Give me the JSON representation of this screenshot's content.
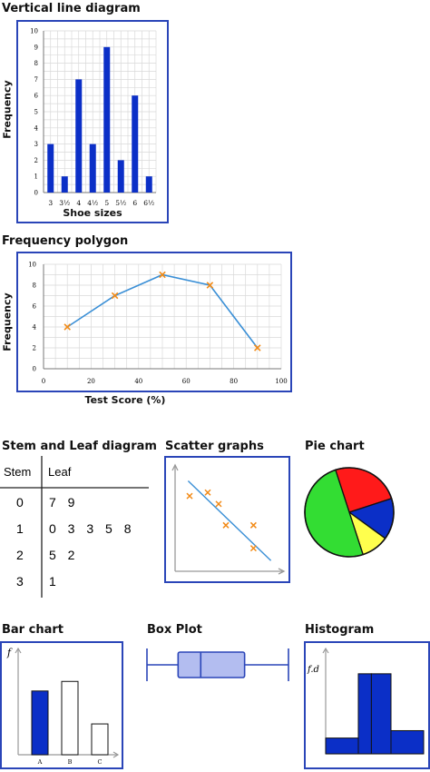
{
  "titles": {
    "vertical_line": "Vertical line diagram",
    "freq_polygon": "Frequency polygon",
    "stem_leaf": "Stem and Leaf diagram",
    "scatter": "Scatter graphs",
    "pie": "Pie chart",
    "bar": "Bar chart",
    "box_plot": "Box Plot",
    "histogram": "Histogram"
  },
  "colors": {
    "border": "#2a45b8",
    "bar": "#0b2fc7",
    "line": "#3a8fd6",
    "marker": "#f28a16",
    "grid": "#d9d9d9"
  },
  "chart_data": [
    {
      "type": "bar",
      "title": "Vertical line diagram",
      "categories": [
        "3",
        "3½",
        "4",
        "4½",
        "5",
        "5½",
        "6",
        "6½"
      ],
      "values": [
        3,
        1,
        7,
        3,
        9,
        2,
        6,
        1
      ],
      "xlabel": "Shoe sizes",
      "ylabel": "Frequency",
      "ylim": [
        0,
        10
      ],
      "yticks": [
        0,
        1,
        2,
        3,
        4,
        5,
        6,
        7,
        8,
        9,
        10
      ],
      "grid": true
    },
    {
      "type": "line",
      "title": "Frequency polygon",
      "x": [
        10,
        30,
        50,
        70,
        90
      ],
      "y": [
        4,
        7,
        9,
        8,
        2
      ],
      "xlabel": "Test Score (%)",
      "ylabel": "Frequency",
      "xlim": [
        0,
        100
      ],
      "ylim": [
        0,
        10
      ],
      "xticks": [
        0,
        20,
        40,
        60,
        80,
        100
      ],
      "yticks": [
        0,
        2,
        4,
        6,
        8,
        10
      ],
      "grid": true
    },
    {
      "type": "table",
      "title": "Stem and Leaf diagram",
      "headers": [
        "Stem",
        "Leaf"
      ],
      "rows": [
        {
          "stem": "0",
          "leaf": "7 9"
        },
        {
          "stem": "1",
          "leaf": "0 3 3 5 8"
        },
        {
          "stem": "2",
          "leaf": "5 2"
        },
        {
          "stem": "3",
          "leaf": "1"
        }
      ]
    },
    {
      "type": "scatter",
      "title": "Scatter graphs",
      "points": [
        [
          2,
          8.5
        ],
        [
          4.5,
          8.9
        ],
        [
          6,
          7.6
        ],
        [
          7,
          5.2
        ],
        [
          10.8,
          5.2
        ],
        [
          10.8,
          2.6
        ]
      ],
      "trend_line": [
        [
          1.8,
          10.2
        ],
        [
          13.2,
          1.2
        ]
      ],
      "xlim": [
        0,
        15
      ],
      "ylim": [
        0,
        12
      ]
    },
    {
      "type": "pie",
      "title": "Pie chart",
      "slices": [
        {
          "value": 25,
          "color": "#ff1a1a"
        },
        {
          "value": 15,
          "color": "#0b2fc7"
        },
        {
          "value": 10,
          "color": "#ffff4d"
        },
        {
          "value": 50,
          "color": "#33dd33"
        }
      ]
    },
    {
      "type": "bar",
      "title": "Bar chart",
      "categories": [
        "A",
        "B",
        "C"
      ],
      "values": [
        6,
        6.9,
        2.9
      ],
      "highlight": [
        true,
        false,
        false
      ],
      "ylabel": "f",
      "ylim": [
        0,
        10
      ]
    },
    {
      "type": "box",
      "title": "Box Plot",
      "min": 0,
      "q1": 22,
      "median": 38,
      "q3": 69,
      "max": 100
    },
    {
      "type": "bar",
      "title": "Histogram",
      "bins": [
        [
          0,
          1
        ],
        [
          1,
          1.4
        ],
        [
          1.4,
          2
        ],
        [
          2,
          3
        ]
      ],
      "values": [
        1.5,
        7.6,
        7.6,
        2.2
      ],
      "ylabel": "f.d",
      "xlim": [
        0,
        3
      ],
      "ylim": [
        0,
        10
      ]
    }
  ]
}
